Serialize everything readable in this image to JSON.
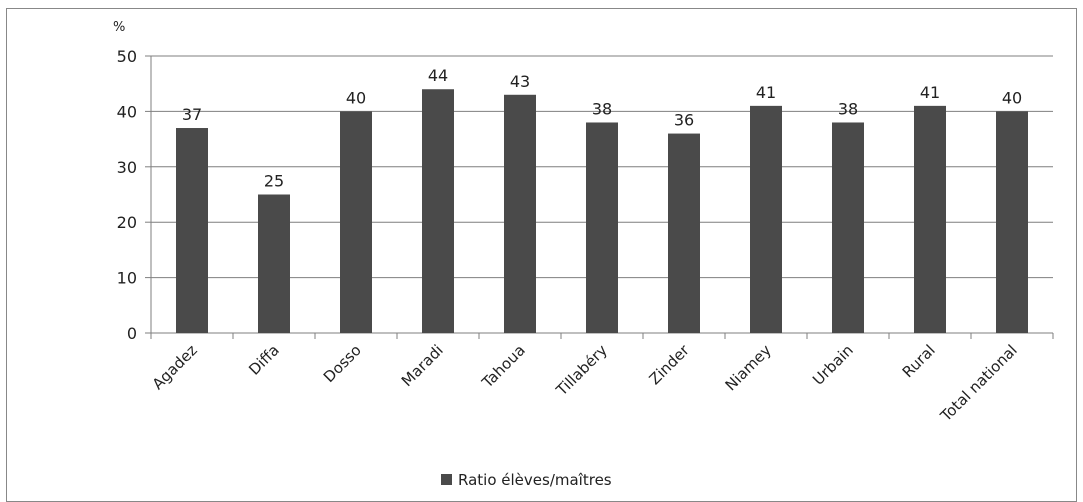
{
  "chart_data": {
    "type": "bar",
    "unit_label": "%",
    "categories": [
      "Agadez",
      "Diffa",
      "Dosso",
      "Maradi",
      "Tahoua",
      "Tillabéry",
      "Zinder",
      "Niamey",
      "Urbain",
      "Rural",
      "Total national"
    ],
    "series": [
      {
        "name": "Ratio élèves/maîtres",
        "values": [
          37,
          25,
          40,
          44,
          43,
          38,
          36,
          41,
          38,
          41,
          40
        ]
      }
    ],
    "ylim": [
      0,
      50
    ],
    "yticks": [
      0,
      10,
      20,
      30,
      40,
      50
    ],
    "grid": true,
    "legend": "bottom",
    "colors": {
      "bar": "#4a4a4a",
      "grid": "#7f7f7f",
      "axis": "#7f7f7f",
      "text": "#222222"
    }
  }
}
